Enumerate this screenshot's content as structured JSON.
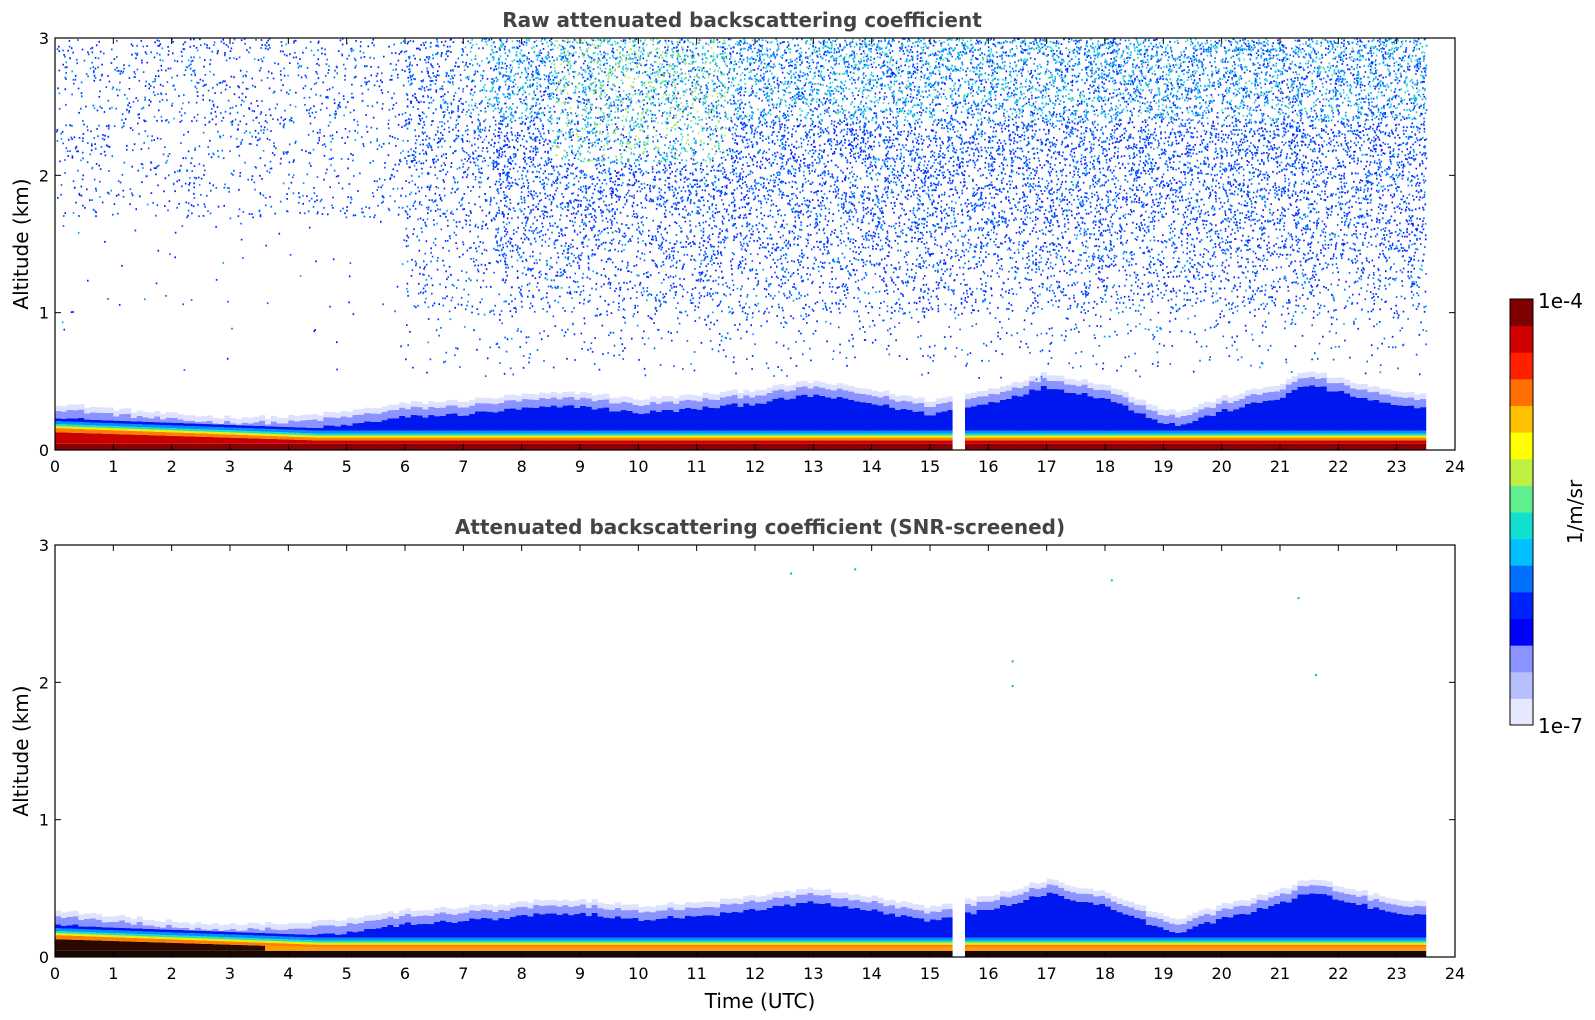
{
  "chart_data": [
    {
      "type": "heatmap",
      "title": "Raw attenuated backscattering coefficient",
      "xlabel": "",
      "ylabel": "Altitude (km)",
      "xlim": [
        0,
        24
      ],
      "ylim": [
        0,
        3
      ],
      "x_ticks": [
        "0",
        "1",
        "2",
        "3",
        "4",
        "5",
        "6",
        "7",
        "8",
        "9",
        "10",
        "11",
        "12",
        "13",
        "14",
        "15",
        "16",
        "17",
        "18",
        "19",
        "20",
        "21",
        "22",
        "23",
        "24"
      ],
      "y_ticks": [
        "0",
        "1",
        "2",
        "3"
      ],
      "data_end_hour": 23.5,
      "gap_hours": [
        15.4,
        15.55
      ],
      "noise": "raw",
      "layer_top_km": [
        [
          0,
          0.3
        ],
        [
          1,
          0.26
        ],
        [
          2,
          0.22
        ],
        [
          3,
          0.2
        ],
        [
          4,
          0.2
        ],
        [
          5,
          0.24
        ],
        [
          6,
          0.3
        ],
        [
          7,
          0.32
        ],
        [
          8,
          0.36
        ],
        [
          9,
          0.38
        ],
        [
          10,
          0.33
        ],
        [
          11,
          0.36
        ],
        [
          12,
          0.4
        ],
        [
          13,
          0.46
        ],
        [
          14,
          0.4
        ],
        [
          15,
          0.32
        ],
        [
          16,
          0.4
        ],
        [
          17,
          0.52
        ],
        [
          18,
          0.44
        ],
        [
          19,
          0.26
        ],
        [
          19.3,
          0.24
        ],
        [
          20,
          0.34
        ],
        [
          21,
          0.44
        ],
        [
          21.5,
          0.54
        ],
        [
          22,
          0.48
        ],
        [
          23,
          0.38
        ],
        [
          23.5,
          0.36
        ]
      ]
    },
    {
      "type": "heatmap",
      "title": "Attenuated backscattering coefficient (SNR-screened)",
      "xlabel": "Time (UTC)",
      "ylabel": "Altitude (km)",
      "xlim": [
        0,
        24
      ],
      "ylim": [
        0,
        3
      ],
      "x_ticks": [
        "0",
        "1",
        "2",
        "3",
        "4",
        "5",
        "6",
        "7",
        "8",
        "9",
        "10",
        "11",
        "12",
        "13",
        "14",
        "15",
        "16",
        "17",
        "18",
        "19",
        "20",
        "21",
        "22",
        "23",
        "24"
      ],
      "y_ticks": [
        "0",
        "1",
        "2",
        "3"
      ],
      "data_end_hour": 23.5,
      "gap_hours": [
        15.4,
        15.55
      ],
      "noise": "screened",
      "layer_top_km": [
        [
          0,
          0.3
        ],
        [
          1,
          0.26
        ],
        [
          2,
          0.22
        ],
        [
          3,
          0.2
        ],
        [
          4,
          0.2
        ],
        [
          5,
          0.24
        ],
        [
          6,
          0.3
        ],
        [
          7,
          0.32
        ],
        [
          8,
          0.36
        ],
        [
          9,
          0.38
        ],
        [
          10,
          0.33
        ],
        [
          11,
          0.36
        ],
        [
          12,
          0.4
        ],
        [
          13,
          0.46
        ],
        [
          14,
          0.4
        ],
        [
          15,
          0.32
        ],
        [
          16,
          0.4
        ],
        [
          17,
          0.52
        ],
        [
          18,
          0.44
        ],
        [
          19,
          0.26
        ],
        [
          19.3,
          0.24
        ],
        [
          20,
          0.34
        ],
        [
          21,
          0.44
        ],
        [
          21.5,
          0.54
        ],
        [
          22,
          0.48
        ],
        [
          23,
          0.38
        ],
        [
          23.5,
          0.36
        ]
      ],
      "isolated_points": [
        [
          12.6,
          2.8
        ],
        [
          13.7,
          2.83
        ],
        [
          16.4,
          2.16
        ],
        [
          16.4,
          1.98
        ],
        [
          18.1,
          2.75
        ],
        [
          21.3,
          2.62
        ],
        [
          21.6,
          2.06
        ]
      ]
    }
  ],
  "colorbar": {
    "max_label": "1e-4",
    "min_label": "1e-7",
    "unit_label": "1/m/sr",
    "colors": [
      "#e6e8ff",
      "#b8bfff",
      "#8a93ff",
      "#0000ff",
      "#0022ff",
      "#0070ff",
      "#00c0ff",
      "#10e0d0",
      "#60f090",
      "#c0f040",
      "#ffff00",
      "#ffc000",
      "#ff7000",
      "#ff2000",
      "#d00000",
      "#7f0000"
    ]
  }
}
